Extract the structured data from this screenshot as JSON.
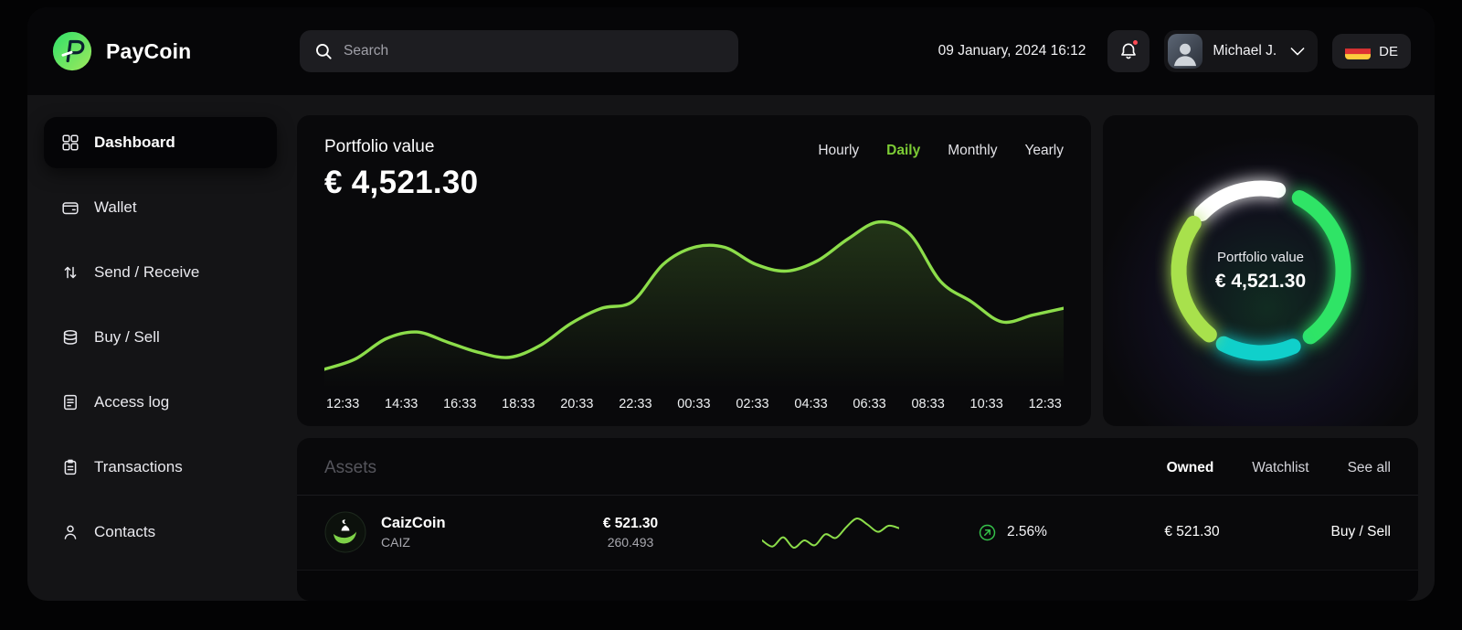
{
  "header": {
    "brand": "PayCoin",
    "search_placeholder": "Search",
    "datetime": "09 January, 2024 16:12",
    "user_name": "Michael J.",
    "language": "DE"
  },
  "sidebar": {
    "items": [
      {
        "label": "Dashboard",
        "icon": "dashboard",
        "active": true
      },
      {
        "label": "Wallet",
        "icon": "wallet",
        "active": false
      },
      {
        "label": "Send / Receive",
        "icon": "send-receive",
        "active": false
      },
      {
        "label": "Buy / Sell",
        "icon": "buy-sell",
        "active": false
      },
      {
        "label": "Access log",
        "icon": "access-log",
        "active": false
      },
      {
        "label": "Transactions",
        "icon": "transactions",
        "active": false
      },
      {
        "label": "Contacts",
        "icon": "contacts",
        "active": false
      }
    ]
  },
  "portfolio": {
    "title": "Portfolio value",
    "value": "€ 4,521.30",
    "tabs": [
      "Hourly",
      "Daily",
      "Monthly",
      "Yearly"
    ],
    "active_tab": "Daily"
  },
  "chart_data": {
    "type": "area",
    "title": "Portfolio value (Daily)",
    "x_labels": [
      "12:33",
      "14:33",
      "16:33",
      "18:33",
      "20:33",
      "22:33",
      "00:33",
      "02:33",
      "04:33",
      "06:33",
      "08:33",
      "10:33",
      "12:33"
    ],
    "values": [
      8,
      14,
      26,
      30,
      24,
      18,
      15,
      22,
      35,
      44,
      48,
      70,
      80,
      80,
      70,
      66,
      72,
      85,
      95,
      88,
      60,
      48,
      36,
      40,
      44
    ],
    "ylim": [
      0,
      100
    ],
    "line_color": "#8cdd4a",
    "area_color": "#86e04a",
    "grid": false,
    "legend": false
  },
  "donut": {
    "label": "Portfolio value",
    "value": "€ 4,521.30",
    "segments": [
      {
        "name": "white",
        "color": "#ffffff",
        "start": -46,
        "sweep": 58
      },
      {
        "name": "green",
        "color": "#2fe466",
        "start": 28,
        "sweep": 115
      },
      {
        "name": "teal",
        "color": "#10d0cb",
        "start": 157,
        "sweep": 50
      },
      {
        "name": "lime",
        "color": "#a8e14c",
        "start": 219,
        "sweep": 86
      }
    ]
  },
  "assets": {
    "title": "Assets",
    "tabs": [
      "Owned",
      "Watchlist",
      "See all"
    ],
    "active_tab": "Owned",
    "rows": [
      {
        "name": "CaizCoin",
        "symbol": "CAIZ",
        "value": "€ 521.30",
        "amount": "260.493",
        "change": "2.56%",
        "change_direction": "up",
        "price": "€ 521.30",
        "action": "Buy / Sell",
        "sparkline": [
          40,
          30,
          45,
          28,
          40,
          32,
          50,
          44,
          62,
          76,
          66,
          54,
          64,
          60
        ]
      }
    ]
  },
  "colors": {
    "accent_green": "#7ccb35",
    "chart_green": "#8cdd4a",
    "donut_green": "#2fe466",
    "donut_lime": "#a8e14c",
    "donut_teal": "#10d0cb",
    "notification_red": "#ff4b55"
  }
}
